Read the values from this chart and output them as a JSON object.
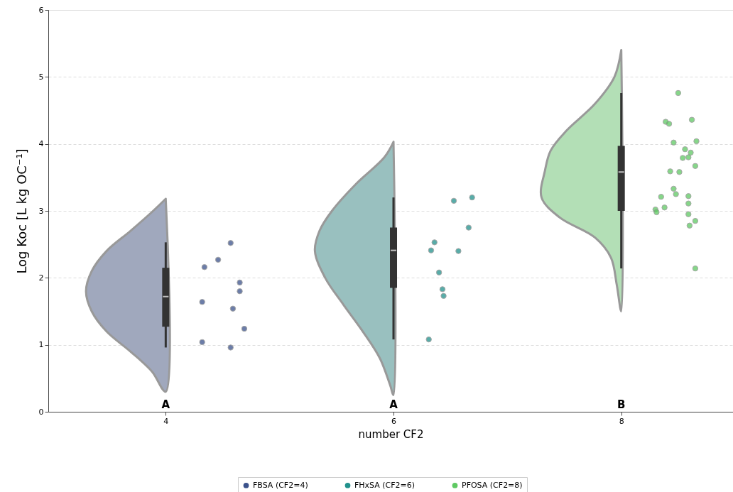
{
  "chart_data": {
    "type": "box",
    "xlabel": "number CF2",
    "ylabel": "Log Koc [L kg OC⁻¹]",
    "x": [
      4,
      6,
      8
    ],
    "boxes": [
      {
        "low": 0.96,
        "q1": 1.27,
        "median": 1.72,
        "q3": 2.15,
        "high": 2.53
      },
      {
        "low": 1.08,
        "q1": 1.85,
        "median": 2.41,
        "q3": 2.75,
        "high": 3.2
      },
      {
        "low": 2.14,
        "q1": 3.0,
        "median": 3.58,
        "q3": 3.97,
        "high": 4.76
      }
    ],
    "series": [
      {
        "type": "area",
        "color": "#a0a8bd",
        "x": [
          4.0,
          3.89,
          3.69,
          3.48,
          3.35,
          3.3,
          3.35,
          3.48,
          3.69,
          3.88,
          4.0
        ],
        "values": [
          3.18,
          3.0,
          2.7,
          2.4,
          2.1,
          1.8,
          1.5,
          1.2,
          0.9,
          0.6,
          0.3
        ]
      },
      {
        "type": "area",
        "color": "#99c0bf",
        "x": [
          6.0,
          5.92,
          5.67,
          5.46,
          5.35,
          5.31,
          5.4,
          5.56,
          5.73,
          5.88,
          5.97,
          6.0
        ],
        "values": [
          4.03,
          3.8,
          3.4,
          3.0,
          2.7,
          2.4,
          2.0,
          1.6,
          1.2,
          0.8,
          0.4,
          0.25
        ]
      },
      {
        "type": "area",
        "color": "#b3dfb6",
        "x": [
          8.0,
          7.94,
          7.77,
          7.52,
          7.38,
          7.33,
          7.3,
          7.46,
          7.77,
          7.91,
          7.96,
          8.0
        ],
        "values": [
          5.4,
          5.0,
          4.6,
          4.2,
          3.9,
          3.6,
          3.2,
          2.9,
          2.6,
          2.3,
          1.9,
          1.5
        ]
      },
      {
        "type": "scatter",
        "name": "FBSA (CF2=4)",
        "color": "#3b528b",
        "x": [
          4.57,
          4.46,
          4.34,
          4.65,
          4.65,
          4.32,
          4.59,
          4.69,
          4.32,
          4.57
        ],
        "values": [
          2.52,
          2.27,
          2.16,
          1.93,
          1.8,
          1.64,
          1.54,
          1.24,
          1.04,
          0.96
        ]
      },
      {
        "type": "scatter",
        "name": "FHxSA (CF2=6)",
        "color": "#21918c",
        "x": [
          6.69,
          6.53,
          6.66,
          6.36,
          6.33,
          6.57,
          6.4,
          6.43,
          6.44,
          6.31
        ],
        "values": [
          3.2,
          3.15,
          2.75,
          2.53,
          2.41,
          2.4,
          2.08,
          1.83,
          1.73,
          1.08
        ]
      },
      {
        "type": "scatter",
        "name": "PFOSA (CF2=8)",
        "color": "#5ec962",
        "x": [
          8.5,
          8.39,
          8.42,
          8.62,
          8.46,
          8.66,
          8.56,
          8.61,
          8.54,
          8.59,
          8.65,
          8.43,
          8.51,
          8.46,
          8.48,
          8.35,
          8.59,
          8.59,
          8.38,
          8.3,
          8.31,
          8.59,
          8.65,
          8.6,
          8.65
        ],
        "values": [
          4.76,
          4.33,
          4.3,
          4.36,
          4.02,
          4.04,
          3.92,
          3.87,
          3.79,
          3.8,
          3.67,
          3.59,
          3.58,
          3.33,
          3.25,
          3.21,
          3.22,
          3.11,
          3.05,
          3.02,
          2.98,
          2.95,
          2.85,
          2.78,
          2.14
        ]
      }
    ],
    "annotations": [
      "A",
      "A",
      "B"
    ],
    "xlim": [
      3,
      8.95
    ],
    "xticks": [
      4,
      6,
      8
    ],
    "ylim": [
      0,
      6
    ],
    "yticks": [
      0,
      1,
      2,
      3,
      4,
      5,
      6
    ],
    "grid": "y",
    "legend": "bottom",
    "line_style": "solid"
  }
}
